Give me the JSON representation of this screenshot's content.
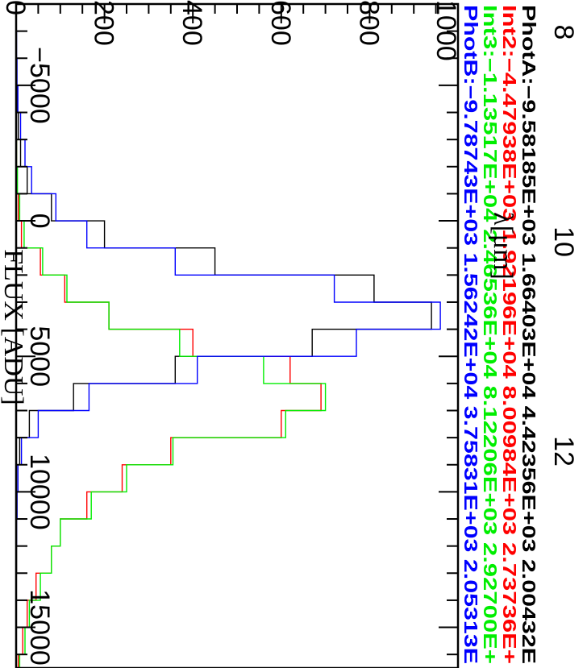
{
  "chart_data": {
    "type": "line",
    "orientation": "rotated-90-clockwise",
    "plot_style": "step",
    "xlabel": "FLUX [ADU]",
    "top_axis_label": "λ[μm]",
    "ylabel": "",
    "flux_ticks": [
      -5000,
      0,
      5000,
      10000,
      15000
    ],
    "flux_tick_labels": [
      "−5000",
      "0",
      "5000",
      "10000",
      "15000"
    ],
    "count_ticks": [
      0,
      200,
      400,
      600,
      800,
      1000
    ],
    "count_tick_labels": [
      "0",
      "200",
      "400",
      "600",
      "800",
      "1000"
    ],
    "wavelength_ticks": [
      8,
      10,
      12
    ],
    "wavelength_tick_labels": [
      "8",
      "10",
      "12"
    ],
    "xlim": [
      -8000,
      16500
    ],
    "ylim": [
      0,
      1000
    ],
    "bin_edges": [
      -8000,
      -7000,
      -6000,
      -5000,
      -4000,
      -3000,
      -2000,
      -1000,
      0,
      1000,
      2000,
      3000,
      4000,
      5000,
      6000,
      7000,
      8000,
      9000,
      10000,
      11000,
      12000,
      13000,
      14000,
      15000,
      16000,
      16500
    ],
    "legend_placement": "top",
    "series": [
      {
        "name": "PhotA",
        "legend_text": "PhotA:−9.58185E+03  1.66403E+04  4.42356E+03  2.00432E",
        "color": "#000000",
        "values": [
          0,
          0,
          1,
          3,
          5,
          10,
          25,
          80,
          200,
          450,
          810,
          940,
          670,
          360,
          130,
          30,
          8,
          4,
          2,
          1,
          1,
          0,
          0,
          0,
          0
        ]
      },
      {
        "name": "Int2",
        "legend_text": "Int2:−4.47938E+03  1.92196E+04  8.00984E+03  2.73736E+",
        "color": "#ff0000",
        "values": [
          0,
          0,
          0,
          0,
          0,
          1,
          2,
          5,
          12,
          55,
          110,
          210,
          400,
          620,
          690,
          600,
          350,
          240,
          160,
          100,
          80,
          45,
          25,
          15,
          5
        ]
      },
      {
        "name": "Int3",
        "legend_text": "Int3:−1.13517E+04  2.46536E+04  8.12206E+03  2.92700E+",
        "color": "#00ee00",
        "values": [
          0,
          0,
          0,
          0,
          0,
          1,
          3,
          8,
          18,
          60,
          115,
          210,
          370,
          560,
          700,
          610,
          355,
          250,
          170,
          100,
          80,
          55,
          30,
          20,
          8
        ]
      },
      {
        "name": "PhotB",
        "legend_text": "PhotB:−9.78743E+03  1.56242E+04  3.75831E+03  2.05313E",
        "color": "#0000ff",
        "values": [
          0,
          1,
          2,
          4,
          10,
          20,
          35,
          90,
          160,
          360,
          720,
          960,
          770,
          410,
          165,
          50,
          12,
          4,
          2,
          1,
          0,
          0,
          0,
          0,
          0
        ]
      }
    ]
  }
}
